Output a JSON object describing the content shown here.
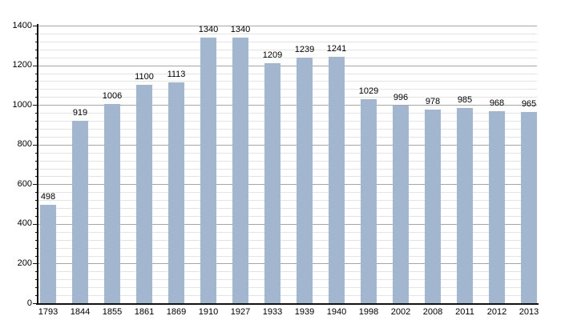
{
  "chart_data": {
    "type": "bar",
    "categories": [
      "1793",
      "1844",
      "1855",
      "1861",
      "1869",
      "1910",
      "1927",
      "1933",
      "1939",
      "1940",
      "1998",
      "2002",
      "2008",
      "2011",
      "2012",
      "2013"
    ],
    "values": [
      498,
      919,
      1006,
      1100,
      1113,
      1340,
      1340,
      1209,
      1239,
      1241,
      1029,
      996,
      978,
      985,
      968,
      965
    ],
    "bar_labels": [
      "498",
      "919",
      "1006",
      "1100",
      "1113",
      "1340",
      "1340",
      "1209",
      "1239",
      "1241",
      "1029",
      "996",
      "978",
      "985",
      "968",
      "965"
    ],
    "xlabel": "",
    "ylabel": "",
    "ylim": [
      0,
      1400
    ],
    "yticks": [
      0,
      200,
      400,
      600,
      800,
      1000,
      1200,
      1400
    ],
    "ytick_labels": [
      "0",
      "200",
      "400",
      "600",
      "800",
      "1000",
      "1200",
      "1400"
    ],
    "minor_grid_step": 40,
    "major_grid_step": 200,
    "grid": true,
    "legend": false,
    "colors": {
      "bar_fill": "#a3b6d0",
      "major_grid": "#a6a6a6",
      "minor_grid": "#e4e4e4",
      "axis": "#111111",
      "label_text": "#000000",
      "background": "#ffffff"
    }
  }
}
